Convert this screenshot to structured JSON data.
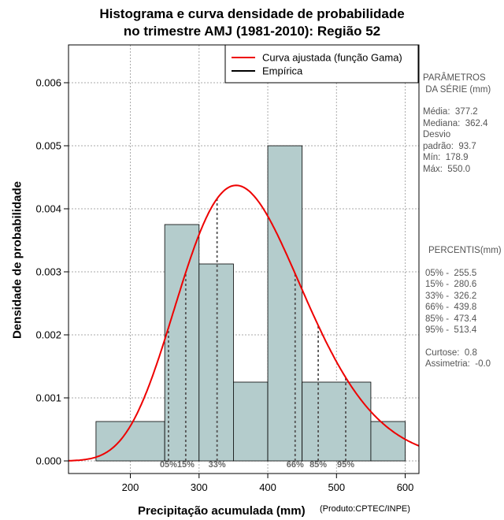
{
  "title": {
    "line1": "Histograma e curva densidade de probabilidade",
    "line2": "no trimestre AMJ (1981-2010): Região 52"
  },
  "chart_data": {
    "type": "bar",
    "title": "Histograma e curva densidade de probabilidade no trimestre AMJ (1981-2010): Região 52",
    "xlabel": "Precipitação acumulada (mm)",
    "ylabel": "Densidade de probabilidade",
    "xlim": [
      110,
      620
    ],
    "ylim": [
      -0.0002,
      0.0066
    ],
    "x_ticks": [
      200,
      300,
      400,
      500,
      600
    ],
    "y_ticks": [
      0.0,
      0.001,
      0.002,
      0.003,
      0.004,
      0.005,
      0.006
    ],
    "y_tick_labels": [
      "0.000",
      "0.001",
      "0.002",
      "0.003",
      "0.004",
      "0.005",
      "0.006"
    ],
    "grid": true,
    "bins": [
      {
        "x0": 150,
        "x1": 250,
        "density": 0.000625
      },
      {
        "x0": 250,
        "x1": 300,
        "density": 0.00375
      },
      {
        "x0": 300,
        "x1": 350,
        "density": 0.003125
      },
      {
        "x0": 350,
        "x1": 400,
        "density": 0.00125
      },
      {
        "x0": 400,
        "x1": 450,
        "density": 0.005
      },
      {
        "x0": 450,
        "x1": 550,
        "density": 0.00125
      },
      {
        "x0": 550,
        "x1": 600,
        "density": 0.000625
      }
    ],
    "gamma_curve": {
      "mean": 377.2,
      "sd": 93.7
    },
    "percentile_lines": [
      {
        "label": "05%",
        "value": 255.5
      },
      {
        "label": "15%",
        "value": 280.6
      },
      {
        "label": "33%",
        "value": 326.2
      },
      {
        "label": "66%",
        "value": 439.8
      },
      {
        "label": "85%",
        "value": 473.4
      },
      {
        "label": "95%",
        "value": 513.4
      }
    ],
    "legend": {
      "position": "top-right",
      "entries": [
        {
          "label": "Curva ajustada (função Gama)",
          "color": "#ee0000"
        },
        {
          "label": "Empírica",
          "color": "#000000"
        }
      ]
    },
    "colors": {
      "bar_fill": "#b4cccc",
      "curve": "#ee0000",
      "percentile": "#555555",
      "grid": "#aaaaaa"
    }
  },
  "stats": {
    "header1": "PARÂMETROS",
    "header2": " DA SÉRIE (mm)",
    "media": "Média:  377.2",
    "mediana": "Mediana:  362.4",
    "desvio": "Desvio",
    "padrao": "padrão:  93.7",
    "min": "Mín:  178.9",
    "max": "Máx:  550.0"
  },
  "percentis": {
    "header": "PERCENTIS(mm)",
    "p05": "05% -  255.5",
    "p15": "15% -  280.6",
    "p33": "33% -  326.2",
    "p66": "66% -  439.8",
    "p85": "85% -  473.4",
    "p95": "95% -  513.4",
    "curtose": "Curtose:  0.8",
    "assimetria": "Assimetria:  -0.0"
  },
  "credit": "(Produto:CPTEC/INPE)"
}
